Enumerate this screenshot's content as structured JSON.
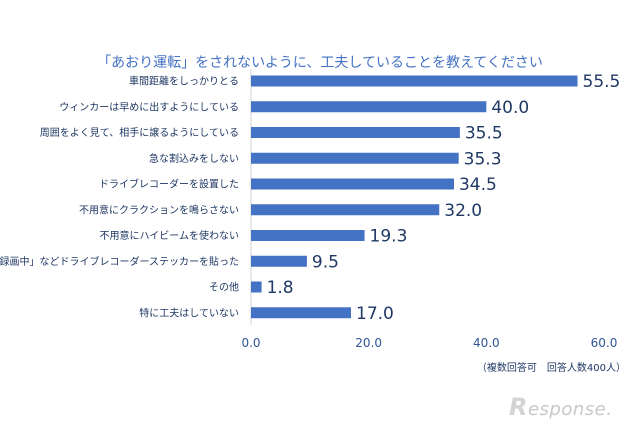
{
  "chart_data": {
    "type": "bar",
    "orientation": "horizontal",
    "title": "「あおり運転」をされないように、工夫していることを教えてください",
    "categories": [
      "車間距離をしっかりとる",
      "ウィンカーは早めに出すようにしている",
      "周囲をよく見て、相手に譲るようにしている",
      "急な割込みをしない",
      "ドライブレコーダーを設置した",
      "不用意にクラクションを鳴らさない",
      "不用意にハイビームを使わない",
      "「録画中」などドライブレコーダーステッカーを貼った",
      "その他",
      "特に工夫はしていない"
    ],
    "values": [
      55.5,
      40.0,
      35.5,
      35.3,
      34.5,
      32.0,
      19.3,
      9.5,
      1.8,
      17.0
    ],
    "value_labels": [
      "55.5",
      "40.0",
      "35.5",
      "35.3",
      "34.5",
      "32.0",
      "19.3",
      "9.5",
      "1.8",
      "17.0"
    ],
    "xlim": [
      0,
      60
    ],
    "x_ticks": [
      "0.0",
      "20.0",
      "40.0",
      "60.0"
    ],
    "x_tick_values": [
      0,
      20,
      40,
      60
    ],
    "grid": false,
    "bar_color": "#4472c4",
    "note": "（複数回答可　回答人数400人）"
  },
  "watermark": {
    "r": "R",
    "text": "esponse."
  }
}
